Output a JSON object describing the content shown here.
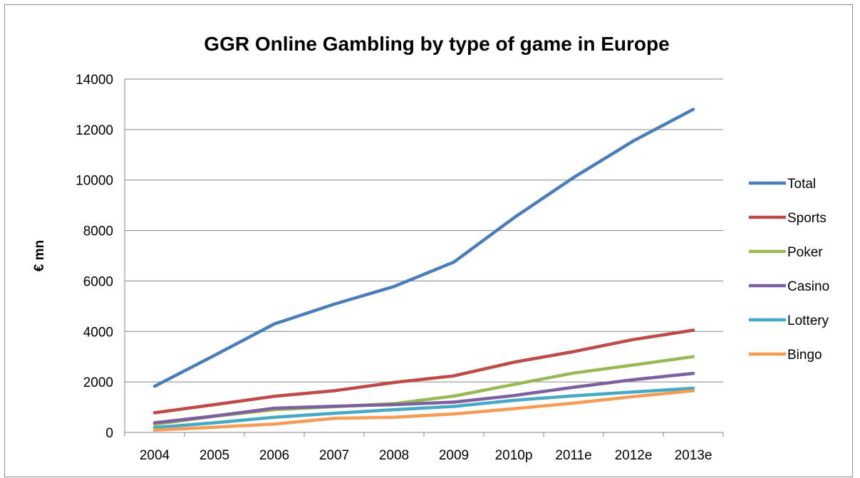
{
  "chart_data": {
    "type": "line",
    "title": "GGR Online Gambling by type of game in Europe",
    "xlabel": "",
    "ylabel": "€ mn",
    "ylim": [
      0,
      14000
    ],
    "yticks": [
      "0",
      "2000",
      "4000",
      "6000",
      "8000",
      "10000",
      "12000",
      "14000"
    ],
    "categories": [
      "2004",
      "2005",
      "2006",
      "2007",
      "2008",
      "2009",
      "2010p",
      "2011e",
      "2012e",
      "2013e"
    ],
    "grid": true,
    "legend_position": "right",
    "series": [
      {
        "name": "Total",
        "color": "#4a7ebb",
        "values": [
          1830,
          3050,
          4300,
          5080,
          5780,
          6750,
          8500,
          10100,
          11550,
          12800
        ]
      },
      {
        "name": "Sports",
        "color": "#be4b48",
        "values": [
          780,
          1100,
          1430,
          1650,
          1980,
          2240,
          2780,
          3200,
          3680,
          4050
        ]
      },
      {
        "name": "Poker",
        "color": "#98b954",
        "values": [
          320,
          640,
          900,
          1020,
          1140,
          1440,
          1900,
          2350,
          2670,
          3000
        ]
      },
      {
        "name": "Casino",
        "color": "#7d60a0",
        "values": [
          380,
          650,
          960,
          1040,
          1100,
          1200,
          1460,
          1790,
          2090,
          2340
        ]
      },
      {
        "name": "Lottery",
        "color": "#46aac5",
        "values": [
          190,
          380,
          600,
          760,
          900,
          1030,
          1270,
          1450,
          1600,
          1750
        ]
      },
      {
        "name": "Bingo",
        "color": "#f59d56",
        "values": [
          90,
          210,
          330,
          560,
          600,
          730,
          940,
          1160,
          1420,
          1650
        ]
      }
    ]
  }
}
